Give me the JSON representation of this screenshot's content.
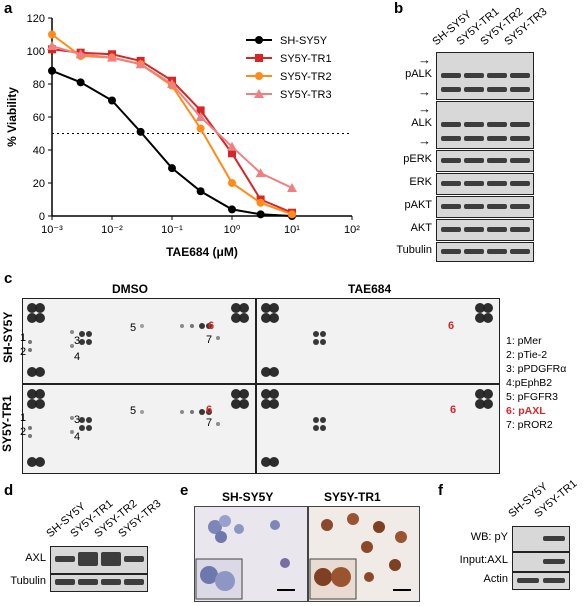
{
  "panels": {
    "a": "a",
    "b": "b",
    "c": "c",
    "d": "d",
    "e": "e",
    "f": "f"
  },
  "chart_data": {
    "type": "line",
    "xscale": "log",
    "xlim": [
      0.001,
      100
    ],
    "ylim": [
      0,
      120
    ],
    "xlabel": "TAE684 (μM)",
    "ylabel": "% Viability",
    "yticks": [
      0,
      20,
      40,
      60,
      80,
      100,
      120
    ],
    "xticks": [
      "10⁻³",
      "10⁻²",
      "10⁻¹",
      "10⁰",
      "10¹",
      "10²"
    ],
    "reference_line": 50,
    "legend_position": "top-right",
    "series": [
      {
        "name": "SH-SY5Y",
        "color": "#000000",
        "marker": "circle",
        "x": [
          0.001,
          0.003,
          0.01,
          0.03,
          0.1,
          0.3,
          1,
          3,
          10
        ],
        "y": [
          88,
          81,
          70,
          51,
          29,
          15,
          4,
          1,
          0
        ]
      },
      {
        "name": "SY5Y-TR1",
        "color": "#d62728",
        "marker": "square",
        "x": [
          0.001,
          0.003,
          0.01,
          0.03,
          0.1,
          0.3,
          1,
          3,
          10
        ],
        "y": [
          101,
          99,
          98,
          94,
          82,
          64,
          38,
          10,
          2
        ]
      },
      {
        "name": "SY5Y-TR2",
        "color": "#ff8c1a",
        "marker": "circle",
        "x": [
          0.001,
          0.003,
          0.01,
          0.03,
          0.1,
          0.3,
          1,
          3,
          10
        ],
        "y": [
          110,
          97,
          96,
          92,
          79,
          53,
          20,
          8,
          1
        ]
      },
      {
        "name": "SY5Y-TR3",
        "color": "#f08080",
        "marker": "triangle",
        "x": [
          0.001,
          0.003,
          0.01,
          0.03,
          0.1,
          0.3,
          1,
          3,
          10
        ],
        "y": [
          103,
          98,
          96,
          92,
          80,
          60,
          42,
          26,
          17
        ]
      }
    ]
  },
  "panel_b": {
    "lanes": [
      "SH-SY5Y",
      "SY5Y-TR1",
      "SY5Y-TR2",
      "SY5Y-TR3"
    ],
    "rows": [
      "pALK",
      "ALK",
      "pERK",
      "ERK",
      "pAKT",
      "AKT",
      "Tubulin"
    ]
  },
  "panel_c": {
    "col_headers": [
      "DMSO",
      "TAE684"
    ],
    "row_headers": [
      "SH-SY5Y",
      "SY5Y-TR1"
    ],
    "markers": [
      "1: pMer",
      "2: pTie-2",
      "3: pPDGFRα",
      "4:pEphB2",
      "5: pFGFR3",
      "6: pAXL",
      "7: pROR2"
    ],
    "spot_numbers": [
      "1",
      "2",
      "3",
      "4",
      "5",
      "6",
      "7"
    ]
  },
  "panel_d": {
    "lanes": [
      "SH-SY5Y",
      "SY5Y-TR1",
      "SY5Y-TR2",
      "SY5Y-TR3"
    ],
    "rows": [
      "AXL",
      "Tubulin"
    ]
  },
  "panel_e": {
    "headers": [
      "SH-SY5Y",
      "SY5Y-TR1"
    ]
  },
  "panel_f": {
    "lanes": [
      "SH-SY5Y",
      "SY5Y-TR1"
    ],
    "rows": [
      "WB: pY",
      "Input:AXL",
      "Actin"
    ]
  }
}
